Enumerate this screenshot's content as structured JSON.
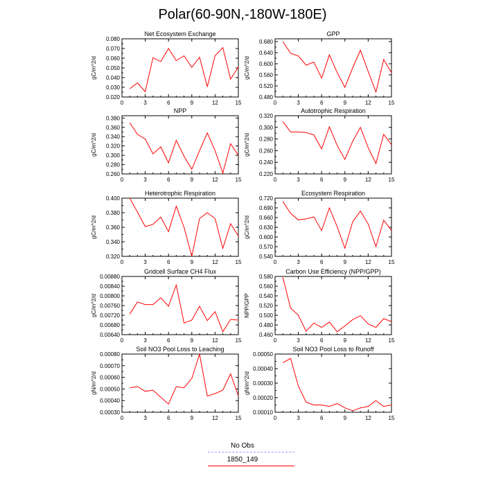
{
  "title": "Polar(60-90N,-180W-180E)",
  "legend": {
    "items": [
      {
        "label": "No Obs",
        "color": "#9999ff",
        "style": "dashed"
      },
      {
        "label": "1850_149",
        "color": "#ff0000",
        "style": "solid"
      }
    ]
  },
  "chart_data": [
    {
      "type": "line",
      "title": "Net Ecosystem Exchange",
      "ylabel": "gC/m^2/d",
      "x": [
        1,
        2,
        3,
        4,
        5,
        6,
        7,
        8,
        9,
        10,
        11,
        12,
        13,
        14,
        15
      ],
      "xlim": [
        0,
        15
      ],
      "xticks": [
        0,
        3,
        6,
        9,
        12,
        15
      ],
      "ylim": [
        0.02,
        0.08
      ],
      "yticks": [
        "0.020",
        "0.030",
        "0.040",
        "0.050",
        "0.060",
        "0.070",
        "0.080"
      ],
      "series": [
        {
          "color": "#ff0000",
          "values": [
            0.0285,
            0.0345,
            0.0255,
            0.0605,
            0.0565,
            0.07,
            0.0575,
            0.0625,
            0.0505,
            0.061,
            0.0305,
            0.0625,
            0.071,
            0.0385,
            0.051
          ]
        }
      ]
    },
    {
      "type": "line",
      "title": "GPP",
      "ylabel": "gC/m^2/d",
      "x": [
        1,
        2,
        3,
        4,
        5,
        6,
        7,
        8,
        9,
        10,
        11,
        12,
        13,
        14,
        15
      ],
      "xlim": [
        0,
        15
      ],
      "xticks": [
        0,
        3,
        6,
        9,
        12,
        15
      ],
      "ylim": [
        0.48,
        0.69
      ],
      "yticks": [
        "0.480",
        "0.520",
        "0.560",
        "0.600",
        "0.640",
        "0.680"
      ],
      "series": [
        {
          "color": "#ff0000",
          "values": [
            0.68,
            0.638,
            0.628,
            0.595,
            0.606,
            0.548,
            0.632,
            0.568,
            0.515,
            0.585,
            0.649,
            0.572,
            0.498,
            0.615,
            0.568
          ]
        }
      ]
    },
    {
      "type": "line",
      "title": "NPP",
      "ylabel": "gC/m^2/d",
      "x": [
        1,
        2,
        3,
        4,
        5,
        6,
        7,
        8,
        9,
        10,
        11,
        12,
        13,
        14,
        15
      ],
      "xlim": [
        0,
        15
      ],
      "xticks": [
        0,
        3,
        6,
        9,
        12,
        15
      ],
      "ylim": [
        0.26,
        0.385
      ],
      "yticks": [
        "0.260",
        "0.280",
        "0.300",
        "0.320",
        "0.340",
        "0.360",
        "0.380"
      ],
      "series": [
        {
          "color": "#ff0000",
          "values": [
            0.37,
            0.345,
            0.335,
            0.303,
            0.318,
            0.284,
            0.332,
            0.298,
            0.27,
            0.31,
            0.348,
            0.31,
            0.262,
            0.325,
            0.3
          ]
        }
      ]
    },
    {
      "type": "line",
      "title": "Autotrophic Respiration",
      "ylabel": "gC/m^2/d",
      "x": [
        1,
        2,
        3,
        4,
        5,
        6,
        7,
        8,
        9,
        10,
        11,
        12,
        13,
        14,
        15
      ],
      "xlim": [
        0,
        15
      ],
      "xticks": [
        0,
        3,
        6,
        9,
        12,
        15
      ],
      "ylim": [
        0.22,
        0.32
      ],
      "yticks": [
        "0.220",
        "0.240",
        "0.260",
        "0.280",
        "0.300",
        "0.320"
      ],
      "series": [
        {
          "color": "#ff0000",
          "values": [
            0.31,
            0.292,
            0.292,
            0.291,
            0.287,
            0.263,
            0.301,
            0.269,
            0.245,
            0.276,
            0.3,
            0.265,
            0.238,
            0.288,
            0.27
          ]
        }
      ]
    },
    {
      "type": "line",
      "title": "Heterotrophic Respiration",
      "ylabel": "gC/m^2/d",
      "x": [
        1,
        2,
        3,
        4,
        5,
        6,
        7,
        8,
        9,
        10,
        11,
        12,
        13,
        14,
        15
      ],
      "xlim": [
        0,
        15
      ],
      "xticks": [
        0,
        3,
        6,
        9,
        12,
        15
      ],
      "ylim": [
        0.32,
        0.4
      ],
      "yticks": [
        "0.320",
        "0.340",
        "0.360",
        "0.380",
        "0.400"
      ],
      "series": [
        {
          "color": "#ff0000",
          "values": [
            0.4,
            0.381,
            0.361,
            0.364,
            0.374,
            0.354,
            0.389,
            0.36,
            0.32,
            0.372,
            0.38,
            0.372,
            0.331,
            0.365,
            0.348
          ]
        }
      ]
    },
    {
      "type": "line",
      "title": "Ecosystem Respiration",
      "ylabel": "gC/m^2/d",
      "x": [
        1,
        2,
        3,
        4,
        5,
        6,
        7,
        8,
        9,
        10,
        11,
        12,
        13,
        14,
        15
      ],
      "xlim": [
        0,
        15
      ],
      "xticks": [
        0,
        3,
        6,
        9,
        12,
        15
      ],
      "ylim": [
        0.54,
        0.72
      ],
      "yticks": [
        "0.540",
        "0.570",
        "0.600",
        "0.630",
        "0.660",
        "0.690",
        "0.720"
      ],
      "series": [
        {
          "color": "#ff0000",
          "values": [
            0.71,
            0.673,
            0.653,
            0.656,
            0.662,
            0.62,
            0.69,
            0.632,
            0.565,
            0.647,
            0.68,
            0.64,
            0.57,
            0.652,
            0.62
          ]
        }
      ]
    },
    {
      "type": "line",
      "title": "Gridcell Surface CH4 Flux",
      "ylabel": "gC/m^2/d",
      "x": [
        1,
        2,
        3,
        4,
        5,
        6,
        7,
        8,
        9,
        10,
        11,
        12,
        13,
        14,
        15
      ],
      "xlim": [
        0,
        15
      ],
      "xticks": [
        0,
        3,
        6,
        9,
        12,
        15
      ],
      "ylim": [
        0.0064,
        0.0088
      ],
      "yticks": [
        "0.00640",
        "0.00680",
        "0.00720",
        "0.00760",
        "0.00800",
        "0.00840",
        "0.00880"
      ],
      "series": [
        {
          "color": "#ff0000",
          "values": [
            0.00725,
            0.00775,
            0.00764,
            0.00764,
            0.00792,
            0.00757,
            0.00845,
            0.00688,
            0.007,
            0.00757,
            0.00698,
            0.00735,
            0.00652,
            0.00703,
            0.007
          ]
        }
      ]
    },
    {
      "type": "line",
      "title": "Carbon Use Efficiency (NPP/GPP)",
      "ylabel": "NPP/GPP",
      "x": [
        1,
        2,
        3,
        4,
        5,
        6,
        7,
        8,
        9,
        10,
        11,
        12,
        13,
        14,
        15
      ],
      "xlim": [
        0,
        15
      ],
      "xticks": [
        0,
        3,
        6,
        9,
        12,
        15
      ],
      "ylim": [
        0.46,
        0.58
      ],
      "yticks": [
        "0.460",
        "0.480",
        "0.500",
        "0.520",
        "0.540",
        "0.560",
        "0.580"
      ],
      "series": [
        {
          "color": "#ff0000",
          "values": [
            0.578,
            0.515,
            0.5,
            0.467,
            0.484,
            0.475,
            0.486,
            0.466,
            0.478,
            0.491,
            0.499,
            0.482,
            0.475,
            0.493,
            0.487
          ]
        }
      ]
    },
    {
      "type": "line",
      "title": "Soil NO3 Pool Loss to Leaching",
      "ylabel": "gN/m^2/d",
      "x": [
        1,
        2,
        3,
        4,
        5,
        6,
        7,
        8,
        9,
        10,
        11,
        12,
        13,
        14,
        15
      ],
      "xlim": [
        0,
        15
      ],
      "xticks": [
        0,
        3,
        6,
        9,
        12,
        15
      ],
      "ylim": [
        0.0003,
        0.0008
      ],
      "yticks": [
        "0.00030",
        "0.00040",
        "0.00050",
        "0.00060",
        "0.00070",
        "0.00080"
      ],
      "series": [
        {
          "color": "#ff0000",
          "values": [
            0.00051,
            0.00052,
            0.00048,
            0.00049,
            0.00043,
            0.00037,
            0.00052,
            0.00051,
            0.00059,
            0.0008,
            0.00044,
            0.00046,
            0.00049,
            0.00063,
            0.00044
          ]
        }
      ]
    },
    {
      "type": "line",
      "title": "Soil NO3 Pool Loss to Runoff",
      "ylabel": "gN/m^2/d",
      "x": [
        1,
        2,
        3,
        4,
        5,
        6,
        7,
        8,
        9,
        10,
        11,
        12,
        13,
        14,
        15
      ],
      "xlim": [
        0,
        15
      ],
      "xticks": [
        0,
        3,
        6,
        9,
        12,
        15
      ],
      "ylim": [
        0.0001,
        0.0005
      ],
      "yticks": [
        "0.00010",
        "0.00020",
        "0.00030",
        "0.00040",
        "0.00050"
      ],
      "series": [
        {
          "color": "#ff0000",
          "values": [
            0.00044,
            0.00047,
            0.00028,
            0.00017,
            0.00015,
            0.00015,
            0.00014,
            0.00016,
            0.00013,
            0.00011,
            0.00013,
            0.00014,
            0.00018,
            0.00014,
            0.00015
          ]
        }
      ]
    }
  ]
}
